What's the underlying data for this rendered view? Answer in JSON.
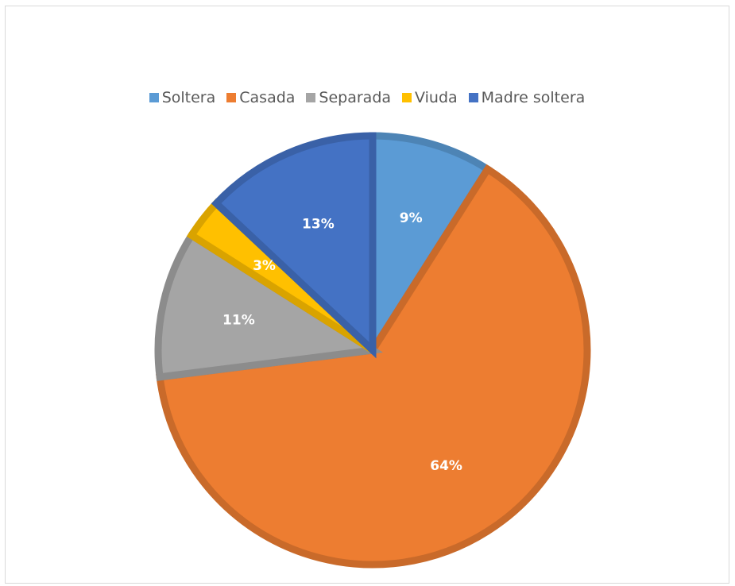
{
  "chart_data": {
    "type": "pie",
    "title": "",
    "legend_position": "top",
    "slices": [
      {
        "label": "Soltera",
        "value": 9,
        "value_label": "9%",
        "color": "#5b9bd5"
      },
      {
        "label": "Casada",
        "value": 64,
        "value_label": "64%",
        "color": "#ed7d31"
      },
      {
        "label": "Separada",
        "value": 11,
        "value_label": "11%",
        "color": "#a5a5a5"
      },
      {
        "label": "Viuda",
        "value": 3,
        "value_label": "3%",
        "color": "#ffc000"
      },
      {
        "label": "Madre soltera",
        "value": 13,
        "value_label": "13%",
        "color": "#4472c4"
      }
    ]
  }
}
